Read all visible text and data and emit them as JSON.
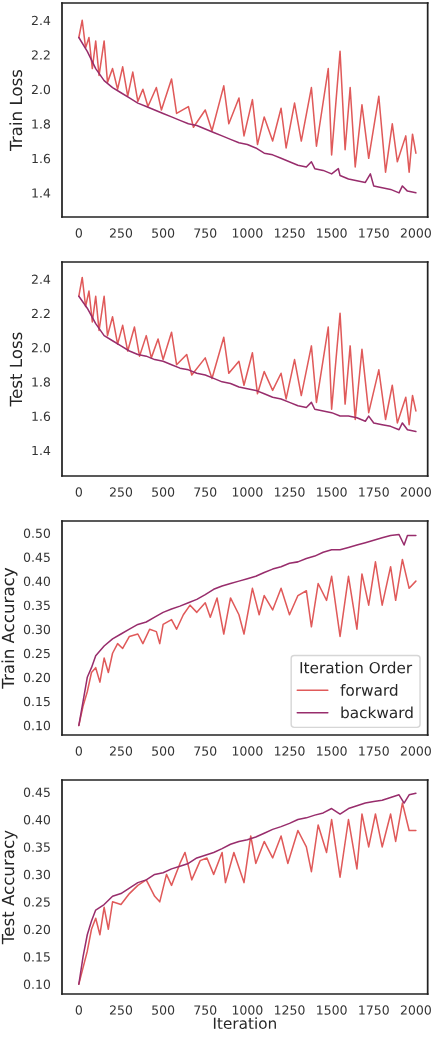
{
  "chart_data": [
    {
      "type": "line",
      "ylabel": "Train Loss",
      "xlim": [
        -100,
        2070
      ],
      "ylim": [
        1.26,
        2.5
      ],
      "xticks": [
        0,
        250,
        500,
        750,
        1000,
        1250,
        1500,
        1750,
        2000
      ],
      "yticks": [
        1.4,
        1.6,
        1.8,
        {
          "value": 2.0,
          "label": "2.0"
        },
        2.2,
        2.4
      ],
      "grid": false,
      "series": [
        {
          "color": "#e05a5a",
          "x": [
            0,
            20,
            40,
            60,
            80,
            100,
            120,
            150,
            170,
            200,
            230,
            260,
            290,
            320,
            350,
            380,
            410,
            460,
            490,
            550,
            580,
            650,
            680,
            750,
            790,
            860,
            890,
            950,
            980,
            1030,
            1060,
            1100,
            1150,
            1200,
            1230,
            1280,
            1320,
            1380,
            1410,
            1480,
            1500,
            1550,
            1580,
            1610,
            1640,
            1680,
            1720,
            1780,
            1820,
            1860,
            1890,
            1940,
            1960,
            1980,
            2000
          ],
          "values": [
            2.3,
            2.4,
            2.24,
            2.3,
            2.12,
            2.28,
            2.08,
            2.28,
            2.04,
            2.12,
            2.0,
            2.13,
            1.96,
            2.1,
            1.93,
            2.0,
            1.9,
            2.01,
            1.88,
            2.06,
            1.86,
            1.9,
            1.78,
            1.88,
            1.76,
            2.02,
            1.8,
            1.95,
            1.73,
            1.94,
            1.68,
            1.84,
            1.7,
            1.89,
            1.66,
            1.92,
            1.7,
            2.01,
            1.67,
            2.12,
            1.62,
            2.22,
            1.65,
            2.01,
            1.55,
            1.91,
            1.6,
            1.96,
            1.52,
            1.8,
            1.58,
            1.73,
            1.52,
            1.74,
            1.63
          ]
        },
        {
          "color": "#982d6c",
          "x": [
            0,
            50,
            100,
            150,
            200,
            250,
            300,
            350,
            400,
            450,
            500,
            550,
            600,
            650,
            700,
            750,
            800,
            850,
            900,
            950,
            1000,
            1050,
            1100,
            1150,
            1200,
            1250,
            1300,
            1350,
            1380,
            1400,
            1450,
            1500,
            1540,
            1550,
            1600,
            1650,
            1700,
            1730,
            1750,
            1800,
            1850,
            1900,
            1920,
            1950,
            2000
          ],
          "values": [
            2.3,
            2.22,
            2.12,
            2.05,
            2.01,
            1.98,
            1.95,
            1.92,
            1.9,
            1.88,
            1.86,
            1.84,
            1.82,
            1.8,
            1.79,
            1.77,
            1.75,
            1.73,
            1.71,
            1.69,
            1.68,
            1.66,
            1.63,
            1.62,
            1.6,
            1.58,
            1.56,
            1.55,
            1.58,
            1.54,
            1.53,
            1.51,
            1.54,
            1.5,
            1.48,
            1.47,
            1.46,
            1.51,
            1.44,
            1.43,
            1.42,
            1.4,
            1.44,
            1.41,
            1.4
          ]
        }
      ]
    },
    {
      "type": "line",
      "ylabel": "Test Loss",
      "xlim": [
        -100,
        2070
      ],
      "ylim": [
        1.25,
        2.5
      ],
      "xticks": [
        0,
        250,
        500,
        750,
        1000,
        1250,
        1500,
        1750,
        2000
      ],
      "yticks": [
        1.4,
        1.6,
        1.8,
        {
          "value": 2.0,
          "label": "2.0"
        },
        2.2,
        2.4
      ],
      "grid": false,
      "series": [
        {
          "color": "#e05a5a",
          "x": [
            0,
            20,
            40,
            60,
            80,
            100,
            120,
            150,
            170,
            200,
            230,
            260,
            290,
            330,
            360,
            400,
            430,
            470,
            500,
            550,
            580,
            640,
            670,
            750,
            790,
            860,
            890,
            950,
            980,
            1030,
            1060,
            1100,
            1150,
            1200,
            1230,
            1280,
            1320,
            1380,
            1410,
            1480,
            1500,
            1550,
            1580,
            1610,
            1640,
            1680,
            1720,
            1780,
            1820,
            1860,
            1890,
            1940,
            1960,
            1980,
            2000
          ],
          "values": [
            2.3,
            2.41,
            2.24,
            2.33,
            2.15,
            2.3,
            2.1,
            2.3,
            2.07,
            2.18,
            2.02,
            2.13,
            1.98,
            2.12,
            1.95,
            2.07,
            1.94,
            2.05,
            1.93,
            2.09,
            1.9,
            1.96,
            1.84,
            1.94,
            1.82,
            2.06,
            1.85,
            1.92,
            1.78,
            1.97,
            1.73,
            1.86,
            1.75,
            1.85,
            1.7,
            1.93,
            1.72,
            2.01,
            1.68,
            2.12,
            1.64,
            2.2,
            1.67,
            2.01,
            1.58,
            1.99,
            1.62,
            1.87,
            1.58,
            1.78,
            1.56,
            1.71,
            1.55,
            1.72,
            1.63
          ]
        },
        {
          "color": "#982d6c",
          "x": [
            0,
            50,
            100,
            150,
            200,
            250,
            300,
            350,
            400,
            450,
            500,
            550,
            600,
            650,
            700,
            750,
            800,
            850,
            900,
            950,
            1000,
            1050,
            1100,
            1150,
            1200,
            1250,
            1300,
            1350,
            1380,
            1400,
            1450,
            1500,
            1550,
            1600,
            1650,
            1700,
            1720,
            1750,
            1800,
            1850,
            1900,
            1920,
            1950,
            2000
          ],
          "values": [
            2.3,
            2.23,
            2.14,
            2.07,
            2.04,
            2.01,
            1.98,
            1.96,
            1.95,
            1.93,
            1.92,
            1.9,
            1.88,
            1.87,
            1.85,
            1.84,
            1.82,
            1.8,
            1.79,
            1.77,
            1.76,
            1.75,
            1.73,
            1.71,
            1.7,
            1.68,
            1.66,
            1.65,
            1.68,
            1.64,
            1.63,
            1.62,
            1.6,
            1.6,
            1.59,
            1.57,
            1.6,
            1.56,
            1.55,
            1.54,
            1.52,
            1.56,
            1.52,
            1.51
          ]
        }
      ]
    },
    {
      "type": "line",
      "ylabel": "Train Accuracy",
      "legend_title": "Iteration Order",
      "legend": "bottom right",
      "xlim": [
        -100,
        2070
      ],
      "ylim": [
        0.08,
        0.525
      ],
      "xticks": [
        0,
        250,
        500,
        750,
        1000,
        1250,
        1500,
        1750,
        2000
      ],
      "yticks": [
        {
          "value": 0.1,
          "label": "0.10"
        },
        0.15,
        {
          "value": 0.2,
          "label": "0.20"
        },
        0.25,
        {
          "value": 0.3,
          "label": "0.30"
        },
        0.35,
        {
          "value": 0.4,
          "label": "0.40"
        },
        0.45,
        {
          "value": 0.5,
          "label": "0.50"
        }
      ],
      "grid": false,
      "series": [
        {
          "name": "forward",
          "color": "#e05a5a",
          "x": [
            0,
            25,
            50,
            75,
            100,
            125,
            150,
            175,
            200,
            230,
            260,
            300,
            350,
            380,
            420,
            460,
            480,
            500,
            550,
            580,
            620,
            660,
            700,
            750,
            780,
            820,
            860,
            900,
            950,
            980,
            1030,
            1070,
            1100,
            1150,
            1200,
            1250,
            1300,
            1350,
            1380,
            1420,
            1470,
            1500,
            1550,
            1600,
            1650,
            1680,
            1720,
            1760,
            1800,
            1850,
            1880,
            1920,
            1960,
            2000
          ],
          "values": [
            0.1,
            0.14,
            0.17,
            0.21,
            0.22,
            0.19,
            0.24,
            0.21,
            0.25,
            0.27,
            0.26,
            0.285,
            0.29,
            0.27,
            0.3,
            0.295,
            0.27,
            0.31,
            0.32,
            0.3,
            0.33,
            0.35,
            0.335,
            0.355,
            0.325,
            0.365,
            0.29,
            0.365,
            0.33,
            0.29,
            0.385,
            0.33,
            0.37,
            0.34,
            0.385,
            0.33,
            0.37,
            0.38,
            0.305,
            0.395,
            0.36,
            0.41,
            0.285,
            0.41,
            0.3,
            0.415,
            0.35,
            0.44,
            0.35,
            0.43,
            0.36,
            0.445,
            0.385,
            0.4
          ]
        },
        {
          "name": "backward",
          "color": "#982d6c",
          "x": [
            0,
            25,
            50,
            75,
            100,
            150,
            200,
            250,
            300,
            350,
            400,
            450,
            500,
            550,
            600,
            650,
            700,
            750,
            800,
            850,
            900,
            950,
            1000,
            1050,
            1100,
            1150,
            1200,
            1250,
            1300,
            1350,
            1400,
            1450,
            1500,
            1550,
            1600,
            1650,
            1700,
            1750,
            1800,
            1850,
            1900,
            1930,
            1950,
            2000
          ],
          "values": [
            0.1,
            0.15,
            0.2,
            0.22,
            0.245,
            0.265,
            0.28,
            0.29,
            0.3,
            0.31,
            0.315,
            0.325,
            0.335,
            0.342,
            0.348,
            0.355,
            0.362,
            0.372,
            0.383,
            0.39,
            0.395,
            0.4,
            0.405,
            0.41,
            0.418,
            0.425,
            0.43,
            0.437,
            0.44,
            0.447,
            0.452,
            0.46,
            0.465,
            0.465,
            0.47,
            0.475,
            0.48,
            0.485,
            0.49,
            0.495,
            0.497,
            0.475,
            0.495,
            0.495
          ]
        }
      ]
    },
    {
      "type": "line",
      "xlabel": "Iteration",
      "ylabel": "Test Accuracy",
      "xlim": [
        -100,
        2070
      ],
      "ylim": [
        0.082,
        0.472
      ],
      "xticks": [
        0,
        250,
        500,
        750,
        1000,
        1250,
        1500,
        1750,
        2000
      ],
      "yticks": [
        {
          "value": 0.1,
          "label": "0.10"
        },
        0.15,
        {
          "value": 0.2,
          "label": "0.20"
        },
        0.25,
        {
          "value": 0.3,
          "label": "0.30"
        },
        0.35,
        {
          "value": 0.4,
          "label": "0.40"
        },
        0.45
      ],
      "grid": false,
      "series": [
        {
          "color": "#e05a5a",
          "x": [
            0,
            25,
            50,
            75,
            100,
            125,
            150,
            175,
            200,
            250,
            300,
            350,
            400,
            450,
            480,
            520,
            550,
            600,
            630,
            670,
            720,
            760,
            800,
            850,
            870,
            920,
            980,
            1020,
            1050,
            1100,
            1150,
            1200,
            1240,
            1300,
            1350,
            1380,
            1420,
            1470,
            1500,
            1550,
            1600,
            1650,
            1680,
            1720,
            1760,
            1800,
            1850,
            1880,
            1920,
            1960,
            2000
          ],
          "values": [
            0.1,
            0.13,
            0.16,
            0.2,
            0.22,
            0.19,
            0.24,
            0.2,
            0.25,
            0.245,
            0.265,
            0.28,
            0.29,
            0.26,
            0.25,
            0.3,
            0.28,
            0.32,
            0.34,
            0.29,
            0.325,
            0.33,
            0.3,
            0.34,
            0.285,
            0.34,
            0.285,
            0.37,
            0.32,
            0.36,
            0.33,
            0.37,
            0.32,
            0.38,
            0.35,
            0.305,
            0.39,
            0.34,
            0.4,
            0.295,
            0.4,
            0.31,
            0.41,
            0.35,
            0.41,
            0.35,
            0.41,
            0.36,
            0.43,
            0.38,
            0.38
          ]
        },
        {
          "color": "#982d6c",
          "x": [
            0,
            25,
            50,
            75,
            100,
            150,
            200,
            250,
            300,
            350,
            400,
            450,
            500,
            550,
            600,
            650,
            700,
            750,
            800,
            850,
            900,
            950,
            1000,
            1050,
            1100,
            1150,
            1200,
            1250,
            1300,
            1350,
            1400,
            1450,
            1500,
            1550,
            1600,
            1650,
            1700,
            1750,
            1800,
            1850,
            1900,
            1930,
            1960,
            2000
          ],
          "values": [
            0.1,
            0.15,
            0.19,
            0.215,
            0.235,
            0.245,
            0.26,
            0.265,
            0.275,
            0.285,
            0.29,
            0.3,
            0.303,
            0.31,
            0.315,
            0.32,
            0.33,
            0.335,
            0.34,
            0.347,
            0.355,
            0.36,
            0.363,
            0.368,
            0.375,
            0.382,
            0.387,
            0.393,
            0.4,
            0.403,
            0.408,
            0.412,
            0.42,
            0.41,
            0.42,
            0.425,
            0.43,
            0.433,
            0.435,
            0.44,
            0.445,
            0.43,
            0.445,
            0.448
          ]
        }
      ]
    }
  ]
}
